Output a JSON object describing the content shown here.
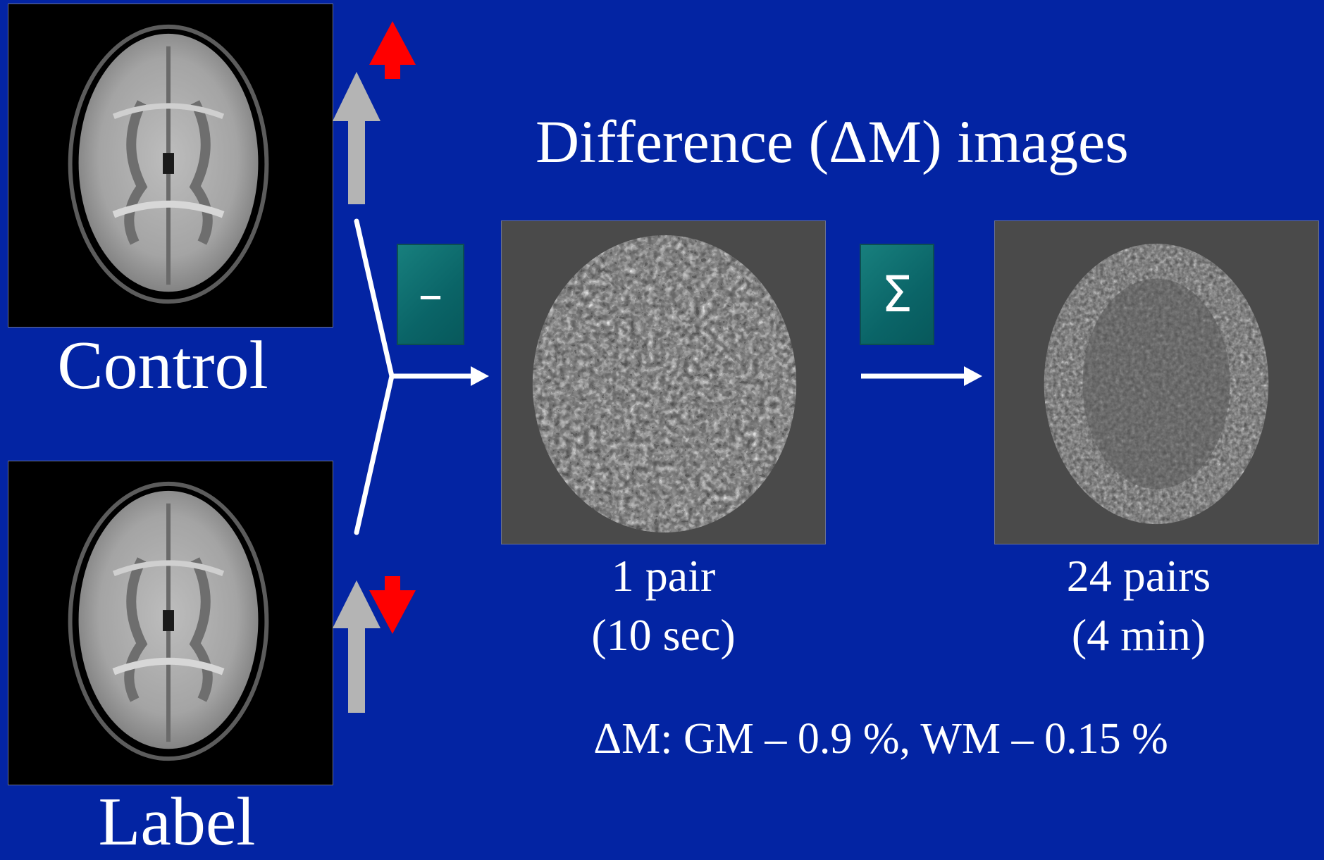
{
  "title": "Difference (ΔM) images",
  "control_label": "Control",
  "label_label": "Label",
  "op_subtract": "–",
  "op_sum": "Σ",
  "single": {
    "line1": "1 pair",
    "line2": "(10 sec)"
  },
  "averaged": {
    "line1": "24 pairs",
    "line2": "(4 min)"
  },
  "result": "ΔM: GM – 0.9 %, WM – 0.15 %",
  "colors": {
    "background": "#0324a3",
    "magnetization_arrow": "#b4b4b4",
    "inversion_arrow": "#ff0000",
    "operator_box": "#0a6467",
    "difference_bg": "#4a4a4a"
  },
  "icons": {
    "control_magnetization": "up-arrow-icon",
    "control_inflow": "red-up-arrow-icon",
    "label_magnetization": "up-arrow-icon",
    "label_inflow": "red-down-arrow-icon"
  }
}
